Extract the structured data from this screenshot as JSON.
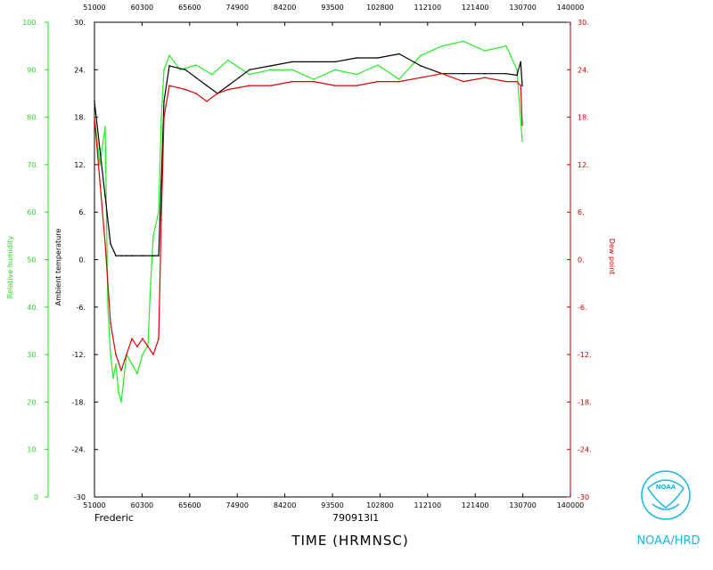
{
  "chart_data": {
    "type": "line",
    "storm_label": "Frederic",
    "flight_id": "790913I1",
    "xlabel": "TIME (HRMNSC)",
    "xlim": [
      51000,
      140000
    ],
    "x_ticks": [
      "51000",
      "60300",
      "65600",
      "74900",
      "84200",
      "93500",
      "102800",
      "112100",
      "121400",
      "130700",
      "140000"
    ],
    "left_outer_axis": {
      "label": "Relative humidity",
      "ylim": [
        0,
        100
      ],
      "ticks": [
        "0",
        "10.",
        "20.",
        "30.",
        "40.",
        "50.",
        "60.",
        "70.",
        "80.",
        "90.",
        "100."
      ],
      "color": "#22dd22"
    },
    "left_inner_axis": {
      "label": "Ambient temperature",
      "ylim": [
        -30,
        30
      ],
      "ticks": [
        "-30",
        "-24.",
        "-18.",
        "-12.",
        "-6.",
        "0.",
        "6.",
        "12.",
        "18.",
        "24.",
        "30."
      ],
      "color": "#000000"
    },
    "right_axis": {
      "label": "Dew point",
      "ylim": [
        -30,
        30
      ],
      "ticks": [
        "-30",
        "-24.",
        "-18.",
        "-12.",
        "-6.",
        "0.",
        "6.",
        "12.",
        "18.",
        "24.",
        "30."
      ],
      "color": "#cc0000"
    },
    "series": [
      {
        "name": "Relative humidity",
        "axis": "left_outer",
        "color": "#22ee22",
        "x": [
          51000,
          52000,
          53000,
          53500,
          54000,
          54500,
          55000,
          55500,
          56000,
          56500,
          57000,
          58000,
          59000,
          60000,
          61000,
          61500,
          62000,
          63000,
          63500,
          64000,
          65000,
          67000,
          70000,
          73000,
          76000,
          80000,
          84000,
          88000,
          92000,
          96000,
          100000,
          104000,
          108000,
          112000,
          116000,
          120000,
          124000,
          128000,
          130000,
          131000
        ],
        "y": [
          80,
          70,
          78,
          40,
          30,
          25,
          28,
          22,
          20,
          25,
          30,
          28,
          26,
          30,
          32,
          45,
          55,
          60,
          80,
          90,
          93,
          90,
          91,
          89,
          92,
          89,
          90,
          90,
          88,
          90,
          89,
          91,
          88,
          93,
          95,
          96,
          94,
          95,
          90,
          75
        ]
      },
      {
        "name": "Ambient temperature",
        "axis": "left_inner",
        "color": "#000000",
        "x": [
          51000,
          52000,
          53000,
          54000,
          55000,
          56000,
          57000,
          58000,
          60000,
          62000,
          63000,
          63500,
          64000,
          65000,
          68000,
          70000,
          72000,
          74000,
          76000,
          78000,
          80000,
          84000,
          88000,
          92000,
          96000,
          100000,
          104000,
          108000,
          112000,
          116000,
          120000,
          124000,
          128000,
          130000,
          130700,
          131000
        ],
        "y": [
          20,
          14,
          8,
          2,
          0.5,
          0.5,
          0.5,
          0.5,
          0.5,
          0.5,
          0.5,
          10,
          20,
          24.5,
          24,
          23,
          22,
          21,
          22,
          23,
          24,
          24.5,
          25,
          25,
          25,
          25.5,
          25.5,
          26,
          24.5,
          23.5,
          23.5,
          23.5,
          23.5,
          23.3,
          25,
          22
        ]
      },
      {
        "name": "Dew point",
        "axis": "right",
        "color": "#dd0000",
        "x": [
          51000,
          52000,
          53000,
          54000,
          55000,
          56000,
          57000,
          58000,
          59000,
          60000,
          61000,
          62000,
          63000,
          63500,
          64000,
          65000,
          68000,
          70000,
          72000,
          74000,
          76000,
          80000,
          84000,
          88000,
          92000,
          96000,
          100000,
          104000,
          108000,
          112000,
          116000,
          120000,
          124000,
          128000,
          130000,
          130700,
          131000
        ],
        "y": [
          18,
          10,
          2,
          -8,
          -12,
          -14,
          -12,
          -10,
          -11,
          -10,
          -11,
          -12,
          -10,
          5,
          18,
          22,
          21.5,
          21,
          20,
          21,
          21.5,
          22,
          22,
          22.5,
          22.5,
          22,
          22,
          22.5,
          22.5,
          23,
          23.5,
          22.5,
          23,
          22.5,
          22.5,
          22,
          17
        ]
      }
    ],
    "grid": false
  },
  "logo": {
    "org_text": "NOAA/HRD",
    "emblem_text": "NOAA",
    "color": "#19b8e0"
  }
}
